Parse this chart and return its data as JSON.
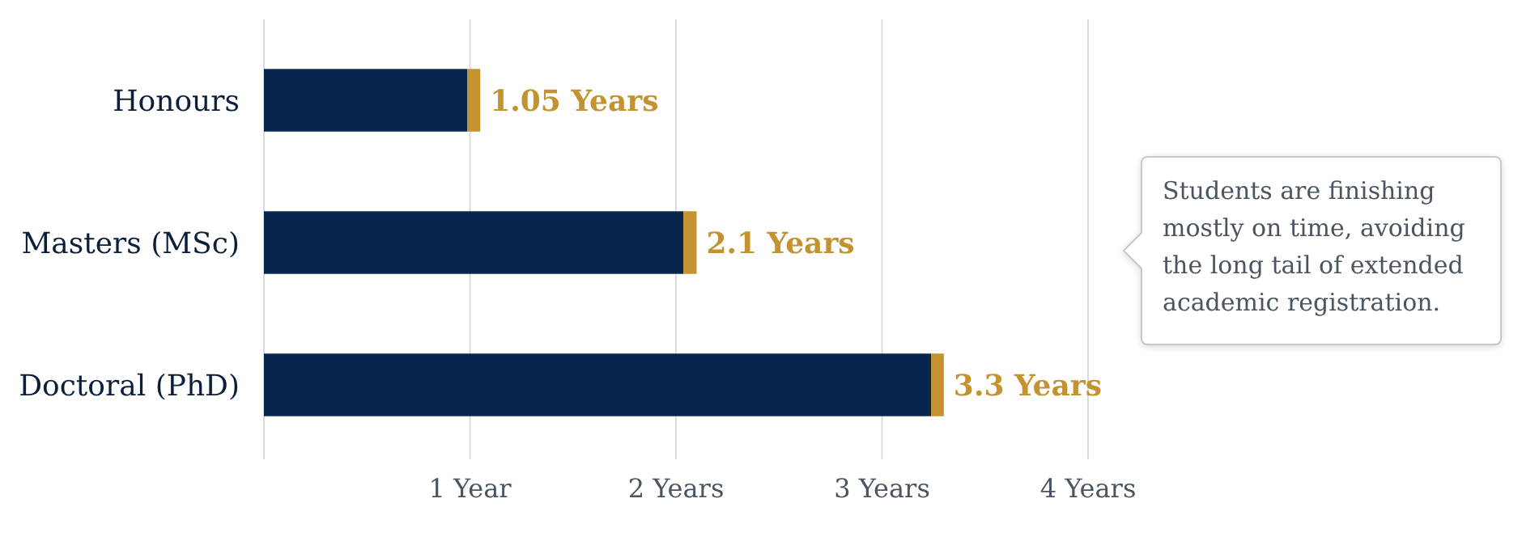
{
  "chart_data": {
    "type": "bar",
    "orientation": "horizontal",
    "categories": [
      "Honours",
      "Masters (MSc)",
      "Doctoral (PhD)"
    ],
    "values": [
      1.05,
      2.1,
      3.3
    ],
    "color": "#06264e",
    "value_labels": [
      "1.05 Years",
      "2.1 Years",
      "3.3 Years"
    ],
    "xlim": [
      0,
      4
    ],
    "xticks": [
      {
        "value": 0,
        "label": null
      },
      {
        "value": 1,
        "label": "1 Year"
      },
      {
        "value": 2,
        "label": "2 Years"
      },
      {
        "value": 3,
        "label": "3 Years"
      },
      {
        "value": 4,
        "label": "4 Years"
      }
    ],
    "grid": "x",
    "annotations": [
      "Students are finishing mostly on time, avoiding the long tail of extended academic registration."
    ]
  }
}
